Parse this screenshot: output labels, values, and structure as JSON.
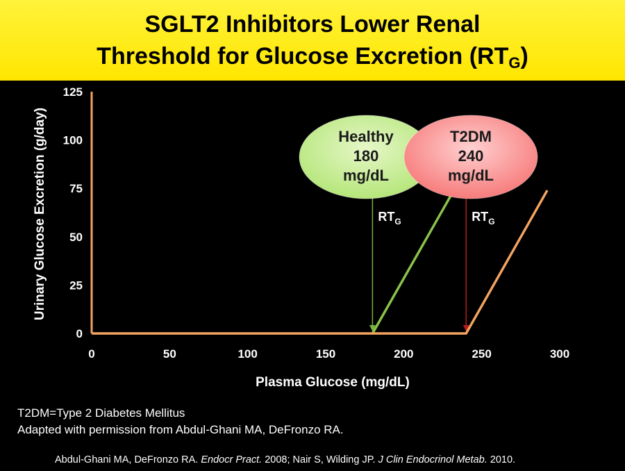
{
  "title_line1": "SGLT2 Inhibitors Lower Renal",
  "title_line2_main": "Threshold for Glucose Excretion (RT",
  "title_line2_sub": "G",
  "title_line2_end": ")",
  "footnote1": "T2DM=Type 2 Diabetes Mellitus",
  "footnote2": "Adapted with permission from Abdul-Ghani MA, DeFronzo RA.",
  "citation": {
    "a": "Abdul-Ghani MA, DeFronzo RA. ",
    "b": "Endocr Pract.",
    "c": " 2008; Nair S, Wilding JP. ",
    "d": "J Clin Endocrinol Metab.",
    "e": " 2010."
  },
  "colors": {
    "title_bg": "#ffe600",
    "axis": "#f4a460",
    "healthy_line": "#8bc34a",
    "t2dm_line": "#f4a460",
    "healthy_ellipse": "#b5e67a",
    "t2dm_ellipse": "#f77b7b",
    "healthy_arrow": "#7cb342",
    "t2dm_arrow": "#b71c1c"
  },
  "chart_data": {
    "type": "line",
    "xlabel": "Plasma Glucose (mg/dL)",
    "ylabel": "Urinary Glucose Excretion (g/day)",
    "xlim": [
      0,
      300
    ],
    "ylim": [
      0,
      125
    ],
    "xticks": [
      0,
      50,
      100,
      150,
      200,
      250,
      300
    ],
    "yticks": [
      0,
      25,
      50,
      75,
      100,
      125
    ],
    "series": [
      {
        "name": "Healthy",
        "color": "#8bc34a",
        "points": [
          [
            180,
            0
          ],
          [
            230,
            71
          ]
        ]
      },
      {
        "name": "T2DM",
        "color": "#f4a460",
        "points": [
          [
            0,
            0
          ],
          [
            240,
            0
          ],
          [
            292,
            74
          ]
        ]
      }
    ],
    "annotations": [
      {
        "name": "healthy-ellipse",
        "lines": [
          "Healthy",
          "180",
          "mg/dL"
        ],
        "fill": "#b5e67a",
        "text_color": "#1a1a1a"
      },
      {
        "name": "t2dm-ellipse",
        "lines": [
          "T2DM",
          "240",
          "mg/dL"
        ],
        "fill": "#f77b7b",
        "text_color": "#1a1a1a"
      },
      {
        "name": "healthy-rtg",
        "label": "RT",
        "sub": "G",
        "x": 180,
        "color": "#7cb342"
      },
      {
        "name": "t2dm-rtg",
        "label": "RT",
        "sub": "G",
        "x": 240,
        "color": "#b71c1c"
      }
    ]
  }
}
